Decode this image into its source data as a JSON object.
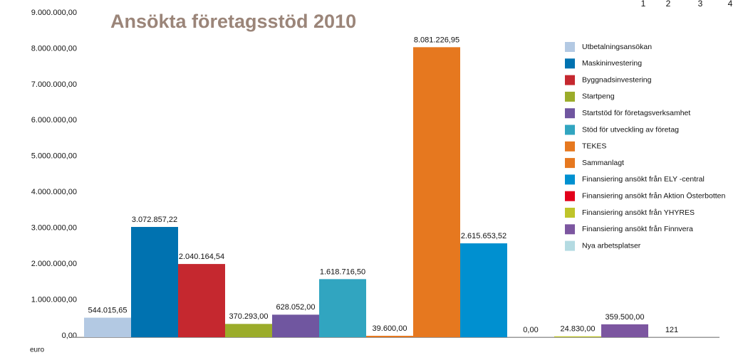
{
  "chart_data": {
    "type": "bar",
    "title": "Ansökta företagsstöd 2010",
    "y_label": "euro",
    "corner_labels": [
      "1",
      "2",
      "3",
      "4"
    ],
    "categories": [
      "Utbetalningsansökan",
      "Maskininvestering",
      "Byggnadsinvestering",
      "Startpeng",
      "Startstöd för företagsverksamhet",
      "Stöd för utveckling av företag",
      "TEKES",
      "Sammanlagt",
      "Finansiering ansökt från ELY -central",
      "Finansiering ansökt från Aktion Österbotten",
      "Finansiering ansökt från YHYRES",
      "Finansiering ansökt från Finnvera",
      "Nya arbetsplatser"
    ],
    "values": [
      544015.65,
      3072857.22,
      2040164.54,
      370293,
      628052,
      1618716.5,
      39600,
      8081226.95,
      2615653.52,
      0,
      24830,
      359500,
      121
    ],
    "value_labels": [
      "544.015,65",
      "3.072.857,22",
      "2.040.164,54",
      "370.293,00",
      "628.052,00",
      "1.618.716,50",
      "39.600,00",
      "8.081.226,95",
      "2.615.653,52",
      "0,00",
      "24.830,00",
      "359.500,00",
      "121"
    ],
    "colors": [
      "#b3c9e3",
      "#0072b0",
      "#c5282f",
      "#9bac2a",
      "#7056a0",
      "#31a5c0",
      "#e6781f",
      "#e6781f",
      "#0090d0",
      "#e2001a",
      "#bfc42a",
      "#7c56a0",
      "#b4dbe2"
    ],
    "ylim": [
      0,
      9000000
    ],
    "yticks": [
      {
        "value": 0,
        "label": "0,00"
      },
      {
        "value": 1000000,
        "label": "1.000.000,00"
      },
      {
        "value": 2000000,
        "label": "2.000.000,00"
      },
      {
        "value": 3000000,
        "label": "3.000.000,00"
      },
      {
        "value": 4000000,
        "label": "4.000.000,00"
      },
      {
        "value": 5000000,
        "label": "5.000.000,00"
      },
      {
        "value": 6000000,
        "label": "6.000.000,00"
      },
      {
        "value": 7000000,
        "label": "7.000.000,00"
      },
      {
        "value": 8000000,
        "label": "8.000.000,00"
      },
      {
        "value": 9000000,
        "label": "9.000.000,00"
      }
    ],
    "legend": "right"
  }
}
